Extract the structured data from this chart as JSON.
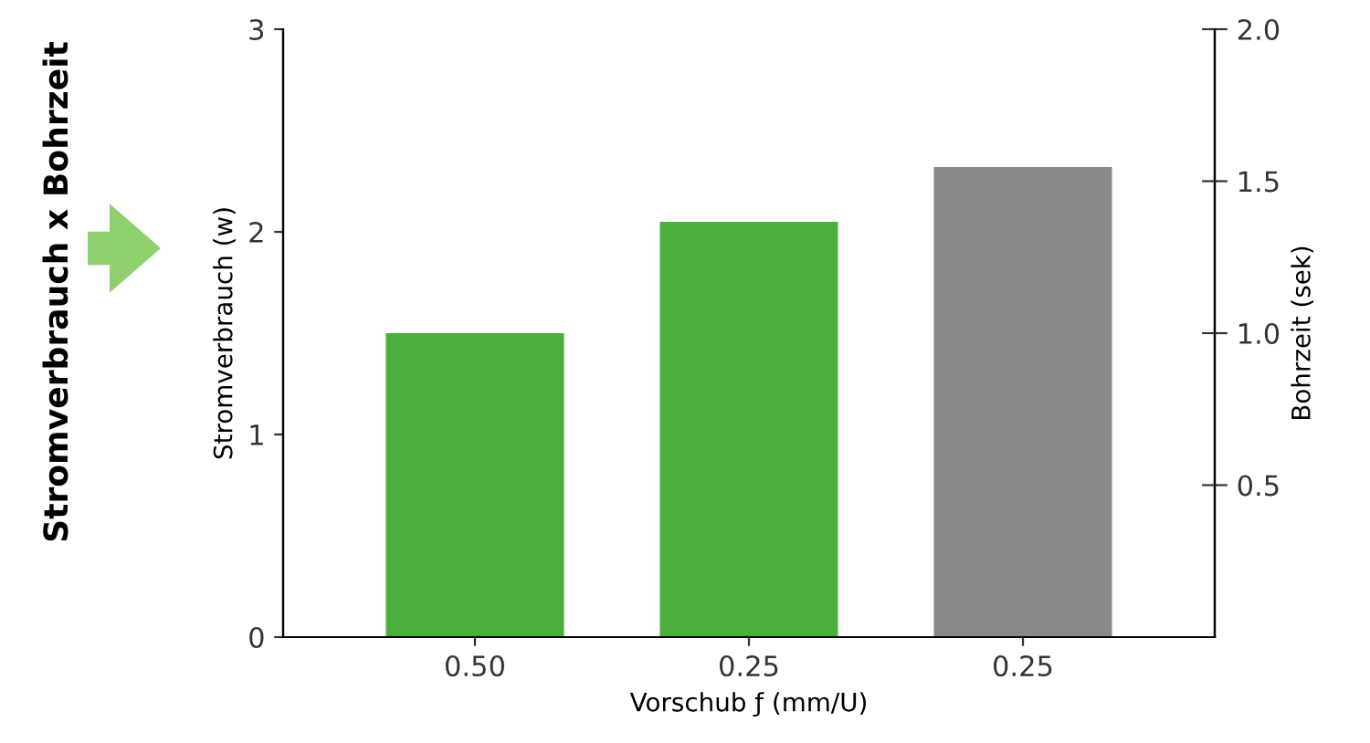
{
  "chart_data": {
    "type": "bar",
    "categories": [
      "0.50",
      "0.25",
      "0.25"
    ],
    "values": [
      1.5,
      2.05,
      2.32
    ],
    "colors": [
      "#4aaf3b",
      "#4aaf3b",
      "#898989"
    ],
    "xlabel": "Vorschub ƒ (mm/U)",
    "ylabel": "Stromverbrauch (w)",
    "y2label": "Bohrzeit (sek)",
    "ylim": [
      0,
      3
    ],
    "yticks": [
      0,
      1,
      2,
      3
    ],
    "y2lim": [
      0,
      2.0
    ],
    "y2ticks": [
      {
        "value": 0.5,
        "label": "0.5"
      },
      {
        "value": 1.0,
        "label": "1.0"
      },
      {
        "value": 1.5,
        "label": "1.5"
      },
      {
        "value": 2.0,
        "label": "2.0"
      }
    ],
    "grid": false,
    "legend": false,
    "annotations": [
      "Stromverbrauch x Bohrzeit"
    ]
  }
}
